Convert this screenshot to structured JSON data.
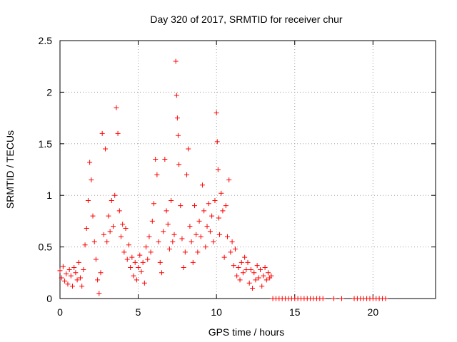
{
  "chart_data": {
    "type": "scatter",
    "title": "Day 320 of 2017, SRMTID for receiver chur",
    "xlabel": "GPS time / hours",
    "ylabel": "SRMTID / TECUs",
    "xlim": [
      0,
      24
    ],
    "ylim": [
      0,
      2.5
    ],
    "xticks": [
      0,
      5,
      10,
      15,
      20
    ],
    "xtick_labels": [
      "0",
      "5",
      "10",
      "15",
      "20"
    ],
    "yticks": [
      0,
      0.5,
      1,
      1.5,
      2,
      2.5
    ],
    "ytick_labels": [
      "0",
      "0.5",
      "1",
      "1.5",
      "2",
      "2.5"
    ],
    "grid": true,
    "marker": "+",
    "color": "#ff0000",
    "series": [
      {
        "name": "SRMTID",
        "points": [
          [
            0.0,
            0.27
          ],
          [
            0.1,
            0.2
          ],
          [
            0.2,
            0.31
          ],
          [
            0.3,
            0.17
          ],
          [
            0.4,
            0.24
          ],
          [
            0.5,
            0.14
          ],
          [
            0.6,
            0.28
          ],
          [
            0.7,
            0.22
          ],
          [
            0.8,
            0.12
          ],
          [
            0.9,
            0.3
          ],
          [
            1.0,
            0.25
          ],
          [
            1.1,
            0.18
          ],
          [
            1.2,
            0.35
          ],
          [
            1.3,
            0.2
          ],
          [
            1.4,
            0.12
          ],
          [
            1.5,
            0.28
          ],
          [
            1.6,
            0.52
          ],
          [
            1.7,
            0.68
          ],
          [
            1.8,
            0.95
          ],
          [
            1.9,
            1.32
          ],
          [
            2.0,
            1.15
          ],
          [
            2.1,
            0.8
          ],
          [
            2.2,
            0.55
          ],
          [
            2.3,
            0.38
          ],
          [
            2.4,
            0.18
          ],
          [
            2.5,
            0.05
          ],
          [
            2.6,
            0.25
          ],
          [
            2.7,
            1.6
          ],
          [
            2.8,
            0.62
          ],
          [
            2.9,
            1.45
          ],
          [
            3.0,
            0.55
          ],
          [
            3.1,
            0.8
          ],
          [
            3.2,
            0.65
          ],
          [
            3.3,
            0.95
          ],
          [
            3.4,
            0.7
          ],
          [
            3.5,
            1.0
          ],
          [
            3.6,
            1.85
          ],
          [
            3.7,
            1.6
          ],
          [
            3.8,
            0.85
          ],
          [
            3.9,
            0.6
          ],
          [
            4.0,
            0.72
          ],
          [
            4.1,
            0.45
          ],
          [
            4.2,
            0.68
          ],
          [
            4.3,
            0.38
          ],
          [
            4.4,
            0.52
          ],
          [
            4.5,
            0.3
          ],
          [
            4.6,
            0.4
          ],
          [
            4.7,
            0.22
          ],
          [
            4.8,
            0.35
          ],
          [
            4.9,
            0.18
          ],
          [
            5.0,
            0.3
          ],
          [
            5.1,
            0.42
          ],
          [
            5.2,
            0.26
          ],
          [
            5.3,
            0.35
          ],
          [
            5.4,
            0.15
          ],
          [
            5.5,
            0.5
          ],
          [
            5.6,
            0.38
          ],
          [
            5.7,
            0.6
          ],
          [
            5.8,
            0.45
          ],
          [
            5.9,
            0.75
          ],
          [
            6.0,
            0.92
          ],
          [
            6.1,
            1.35
          ],
          [
            6.2,
            1.2
          ],
          [
            6.3,
            0.55
          ],
          [
            6.4,
            0.35
          ],
          [
            6.5,
            0.25
          ],
          [
            6.6,
            0.65
          ],
          [
            6.7,
            1.35
          ],
          [
            6.8,
            0.85
          ],
          [
            6.9,
            0.72
          ],
          [
            7.0,
            0.48
          ],
          [
            7.1,
            0.95
          ],
          [
            7.2,
            0.55
          ],
          [
            7.3,
            0.62
          ],
          [
            7.4,
            2.3
          ],
          [
            7.45,
            1.97
          ],
          [
            7.5,
            1.75
          ],
          [
            7.55,
            1.58
          ],
          [
            7.6,
            1.3
          ],
          [
            7.7,
            0.9
          ],
          [
            7.8,
            0.58
          ],
          [
            7.9,
            0.3
          ],
          [
            8.0,
            0.45
          ],
          [
            8.1,
            1.2
          ],
          [
            8.2,
            1.45
          ],
          [
            8.3,
            0.7
          ],
          [
            8.4,
            0.55
          ],
          [
            8.5,
            0.35
          ],
          [
            8.6,
            0.9
          ],
          [
            8.7,
            0.62
          ],
          [
            8.8,
            0.45
          ],
          [
            8.9,
            0.75
          ],
          [
            9.0,
            0.6
          ],
          [
            9.1,
            1.1
          ],
          [
            9.2,
            0.85
          ],
          [
            9.3,
            0.5
          ],
          [
            9.4,
            0.7
          ],
          [
            9.5,
            0.92
          ],
          [
            9.6,
            0.65
          ],
          [
            9.7,
            0.8
          ],
          [
            9.8,
            0.55
          ],
          [
            9.9,
            0.95
          ],
          [
            10.0,
            1.8
          ],
          [
            10.05,
            1.52
          ],
          [
            10.1,
            1.25
          ],
          [
            10.15,
            0.78
          ],
          [
            10.2,
            0.62
          ],
          [
            10.3,
            1.02
          ],
          [
            10.4,
            0.85
          ],
          [
            10.5,
            0.4
          ],
          [
            10.6,
            0.9
          ],
          [
            10.7,
            0.6
          ],
          [
            10.8,
            1.15
          ],
          [
            10.9,
            0.45
          ],
          [
            11.0,
            0.55
          ],
          [
            11.1,
            0.32
          ],
          [
            11.2,
            0.48
          ],
          [
            11.3,
            0.22
          ],
          [
            11.4,
            0.3
          ],
          [
            11.5,
            0.18
          ],
          [
            11.6,
            0.35
          ],
          [
            11.7,
            0.25
          ],
          [
            11.8,
            0.4
          ],
          [
            11.9,
            0.28
          ],
          [
            12.0,
            0.35
          ],
          [
            12.1,
            0.15
          ],
          [
            12.2,
            0.28
          ],
          [
            12.3,
            0.1
          ],
          [
            12.4,
            0.25
          ],
          [
            12.5,
            0.18
          ],
          [
            12.6,
            0.32
          ],
          [
            12.7,
            0.2
          ],
          [
            12.8,
            0.28
          ],
          [
            12.9,
            0.12
          ],
          [
            13.0,
            0.22
          ],
          [
            13.1,
            0.3
          ],
          [
            13.2,
            0.18
          ],
          [
            13.3,
            0.25
          ],
          [
            13.4,
            0.2
          ],
          [
            13.5,
            0.22
          ],
          [
            13.6,
            0.0
          ],
          [
            13.8,
            0.0
          ],
          [
            14.0,
            0.0
          ],
          [
            14.2,
            0.0
          ],
          [
            14.4,
            0.0
          ],
          [
            14.6,
            0.0
          ],
          [
            14.8,
            0.0
          ],
          [
            15.0,
            0.0
          ],
          [
            15.2,
            0.0
          ],
          [
            15.4,
            0.0
          ],
          [
            15.6,
            0.0
          ],
          [
            15.8,
            0.0
          ],
          [
            16.0,
            0.0
          ],
          [
            16.2,
            0.0
          ],
          [
            16.4,
            0.0
          ],
          [
            16.6,
            0.0
          ],
          [
            16.8,
            0.0
          ],
          [
            17.5,
            0.0
          ],
          [
            18.0,
            0.0
          ],
          [
            18.8,
            0.0
          ],
          [
            19.0,
            0.0
          ],
          [
            19.2,
            0.0
          ],
          [
            19.4,
            0.0
          ],
          [
            19.6,
            0.0
          ],
          [
            19.8,
            0.0
          ],
          [
            20.0,
            0.0
          ],
          [
            20.2,
            0.0
          ],
          [
            20.4,
            0.0
          ],
          [
            20.6,
            0.0
          ],
          [
            20.8,
            0.0
          ]
        ]
      }
    ]
  }
}
